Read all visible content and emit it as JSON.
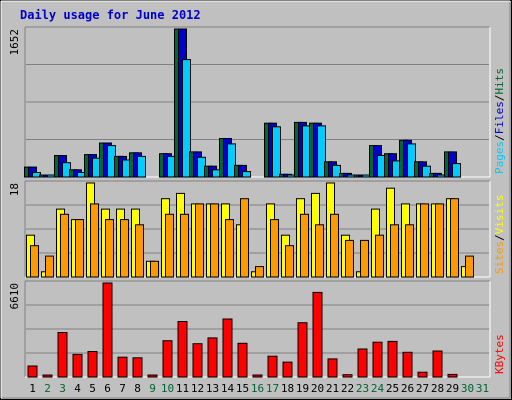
{
  "chart_data": {
    "title": "Daily usage for June 2012",
    "type": "bar",
    "categories": [
      "1",
      "2",
      "3",
      "4",
      "5",
      "6",
      "7",
      "8",
      "9",
      "10",
      "11",
      "12",
      "13",
      "14",
      "15",
      "16",
      "17",
      "18",
      "19",
      "20",
      "21",
      "22",
      "23",
      "24",
      "25",
      "26",
      "27",
      "28",
      "29",
      "30",
      "31"
    ],
    "weekend_days": [
      "2",
      "3",
      "9",
      "10",
      "16",
      "17",
      "23",
      "24",
      "30",
      "31"
    ],
    "colors": {
      "background": "#c0c0c0",
      "hits": "#006633",
      "files": "#0000cc",
      "pages": "#00ccff",
      "visits": "#ffff00",
      "sites": "#ff9900",
      "kbytes": "#ff0000",
      "weekday_tick": "#000000",
      "weekend_tick": "#006633",
      "title": "#0000cc"
    },
    "panels": [
      {
        "id": "hits",
        "ymax_label": "1652",
        "ymax": 1652,
        "legend": [
          {
            "label": "Pages",
            "color": "#00ccff"
          },
          {
            "label": "/",
            "color": "#000000"
          },
          {
            "label": "Files",
            "color": "#0000cc"
          },
          {
            "label": "/",
            "color": "#000000"
          },
          {
            "label": "Hits",
            "color": "#006633"
          }
        ],
        "series": [
          {
            "name": "Hits",
            "values": [
              110,
              20,
              240,
              80,
              250,
              380,
              230,
              270,
              0,
              260,
              1652,
              280,
              120,
              430,
              130,
              0,
              600,
              30,
              610,
              600,
              170,
              40,
              10,
              350,
              260,
              410,
              170,
              40,
              280,
              0,
              0
            ]
          },
          {
            "name": "Files",
            "values": [
              110,
              20,
              240,
              80,
              250,
              380,
              230,
              270,
              0,
              260,
              1652,
              280,
              120,
              430,
              130,
              0,
              600,
              30,
              610,
              600,
              170,
              40,
              10,
              350,
              260,
              410,
              170,
              40,
              280,
              0,
              0
            ]
          },
          {
            "name": "Pages",
            "values": [
              50,
              10,
              160,
              50,
              210,
              350,
              190,
              230,
              0,
              230,
              1310,
              220,
              80,
              370,
              60,
              0,
              560,
              10,
              570,
              570,
              130,
              20,
              5,
              240,
              180,
              370,
              120,
              20,
              150,
              0,
              0
            ]
          }
        ]
      },
      {
        "id": "visits",
        "ymax_label": "18",
        "ymax": 18,
        "legend": [
          {
            "label": "Sites",
            "color": "#ff9900"
          },
          {
            "label": "/",
            "color": "#000000"
          },
          {
            "label": "Visits",
            "color": "#ffff00"
          }
        ],
        "series": [
          {
            "name": "Visits",
            "values": [
              8,
              1,
              13,
              11,
              18,
              13,
              13,
              13,
              3,
              15,
              16,
              14,
              14,
              14,
              10,
              1,
              14,
              8,
              15,
              16,
              18,
              8,
              1,
              13,
              17,
              14,
              14,
              14,
              15,
              2,
              0
            ]
          },
          {
            "name": "Sites",
            "values": [
              6,
              4,
              12,
              11,
              14,
              11,
              11,
              10,
              3,
              12,
              12,
              14,
              14,
              11,
              15,
              2,
              11,
              6,
              12,
              10,
              12,
              7,
              7,
              8,
              10,
              10,
              14,
              14,
              15,
              4,
              0
            ]
          }
        ]
      },
      {
        "id": "kbytes",
        "ymax_label": "6610",
        "ymax": 6610,
        "legend": [
          {
            "label": "KBytes",
            "color": "#ff0000"
          }
        ],
        "series": [
          {
            "name": "KBytes",
            "values": [
              770,
              80,
              3130,
              1590,
              1790,
              6610,
              1390,
              1350,
              140,
              2550,
              3900,
              2340,
              2750,
              4080,
              2370,
              140,
              1460,
              1050,
              3820,
              5950,
              1270,
              160,
              1970,
              2450,
              2500,
              1740,
              340,
              1830,
              180,
              0,
              0
            ]
          }
        ]
      }
    ]
  }
}
